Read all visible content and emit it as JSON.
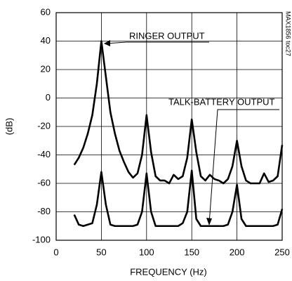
{
  "chart_data": {
    "type": "line",
    "xlabel": "FREQUENCY (Hz)",
    "ylabel": "(dB)",
    "code": "MAX1856 toc27",
    "annotations": [
      "RINGER OUTPUT",
      "TALK-BATTERY OUTPUT"
    ],
    "x": [
      20,
      25,
      30,
      35,
      40,
      45,
      50,
      55,
      60,
      65,
      70,
      75,
      80,
      85,
      90,
      95,
      100,
      105,
      110,
      115,
      120,
      125,
      130,
      135,
      140,
      145,
      150,
      155,
      160,
      165,
      170,
      175,
      180,
      185,
      190,
      195,
      200,
      205,
      210,
      215,
      220,
      225,
      230,
      235,
      240,
      245,
      250
    ],
    "series": [
      {
        "name": "RINGER OUTPUT",
        "color": "#000000",
        "values": [
          -47,
          -42,
          -35,
          -25,
          -12,
          10,
          40,
          15,
          -10,
          -25,
          -37,
          -45,
          -52,
          -56,
          -53,
          -40,
          -12,
          -38,
          -55,
          -58,
          -58,
          -60,
          -54,
          -57,
          -55,
          -42,
          -15,
          -38,
          -55,
          -58,
          -54,
          -57,
          -58,
          -60,
          -57,
          -48,
          -30,
          -48,
          -58,
          -60,
          -60,
          -60,
          -53,
          -59,
          -58,
          -55,
          -33
        ]
      },
      {
        "name": "TALK-BATTERY OUTPUT",
        "color": "#000000",
        "values": [
          -82,
          -89,
          -90,
          -89,
          -88,
          -75,
          -52,
          -75,
          -89,
          -90,
          -90,
          -90,
          -90,
          -90,
          -89,
          -80,
          -53,
          -80,
          -90,
          -90,
          -90,
          -90,
          -90,
          -90,
          -88,
          -80,
          -51,
          -85,
          -90,
          -90,
          -90,
          -90,
          -90,
          -90,
          -89,
          -80,
          -61,
          -85,
          -90,
          -90,
          -90,
          -90,
          -90,
          -90,
          -90,
          -89,
          -78
        ]
      }
    ],
    "xlim": [
      0,
      250
    ],
    "xticks": [
      0,
      50,
      100,
      150,
      200,
      250
    ],
    "ylim": [
      -100,
      60
    ],
    "yticks": [
      -100,
      -80,
      -60,
      -40,
      -20,
      0,
      20,
      40,
      60
    ],
    "grid": true
  }
}
